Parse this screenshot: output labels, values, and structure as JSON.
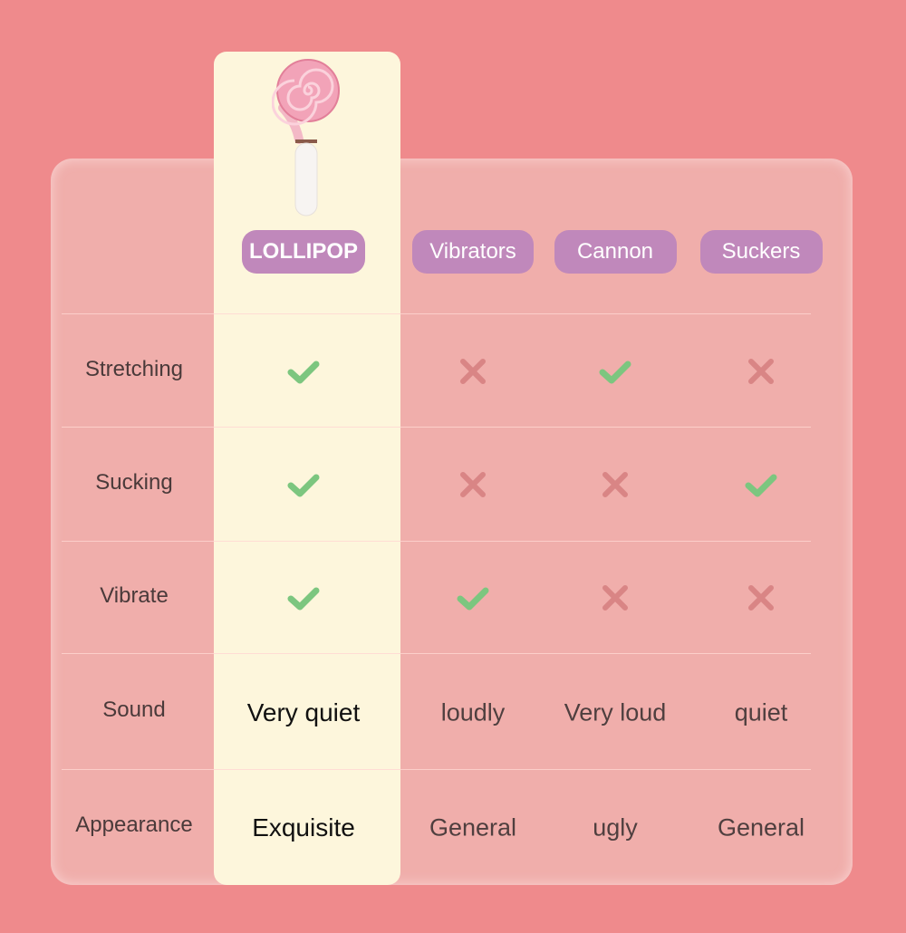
{
  "colors": {
    "background": "#ef8a8c",
    "panel": "#f0aeab",
    "highlight": "#fdf6dc",
    "pill": "#c088bb",
    "check": "#7cc67f",
    "cross": "#d98585"
  },
  "product_image": {
    "icon": "lollipop-product-image"
  },
  "columns": [
    {
      "label": "LOLLIPOP",
      "highlight": true
    },
    {
      "label": "Vibrators"
    },
    {
      "label": "Cannon"
    },
    {
      "label": "Suckers"
    }
  ],
  "rows": [
    {
      "label": "Stretching",
      "values": [
        "check",
        "cross",
        "check",
        "cross"
      ]
    },
    {
      "label": "Sucking",
      "values": [
        "check",
        "cross",
        "cross",
        "check"
      ]
    },
    {
      "label": "Vibrate",
      "values": [
        "check",
        "check",
        "cross",
        "cross"
      ]
    },
    {
      "label": "Sound",
      "values": [
        "Very quiet",
        "loudly",
        "Very loud",
        "quiet"
      ]
    },
    {
      "label": "Appearance",
      "values": [
        "Exquisite",
        "General",
        "ugly",
        "General"
      ]
    }
  ]
}
